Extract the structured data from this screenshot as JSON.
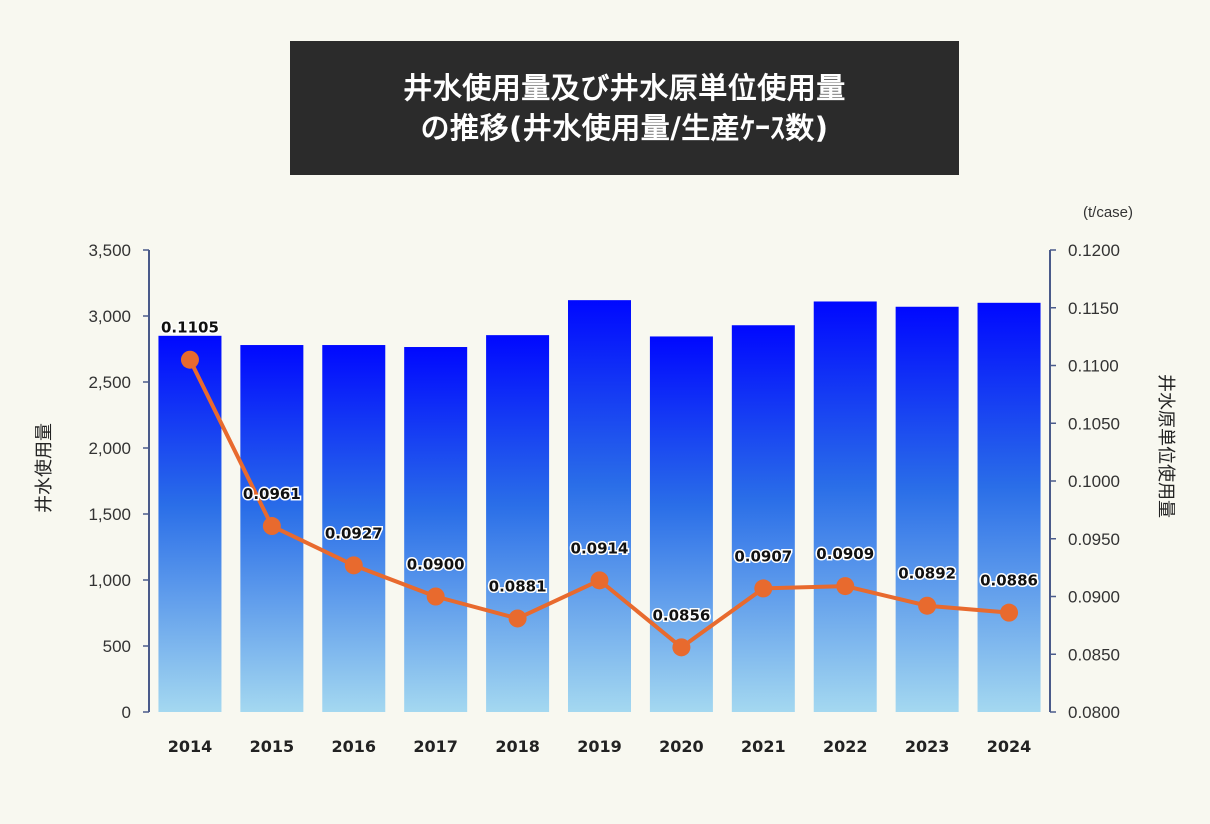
{
  "title": {
    "line1": "井水使用量及び井水原単位使用量",
    "line2": "の推移(井水使用量/生産ｹｰｽ数)"
  },
  "chart_data": {
    "type": "bar",
    "categories": [
      "2014",
      "2015",
      "2016",
      "2017",
      "2018",
      "2019",
      "2020",
      "2021",
      "2022",
      "2023",
      "2024"
    ],
    "series": [
      {
        "type": "bar",
        "axis": "left",
        "values": [
          2850,
          2780,
          2780,
          2765,
          2855,
          3120,
          2845,
          2930,
          3110,
          3070,
          3100
        ]
      },
      {
        "type": "line",
        "axis": "right",
        "values": [
          0.1105,
          0.0961,
          0.0927,
          0.09,
          0.0881,
          0.0914,
          0.0856,
          0.0907,
          0.0909,
          0.0892,
          0.0886
        ],
        "labels": [
          "0.1105",
          "0.0961",
          "0.0927",
          "0.0900",
          "0.0881",
          "0.0914",
          "0.0856",
          "0.0907",
          "0.0909",
          "0.0892",
          "0.0886"
        ]
      }
    ],
    "ylabel": "井水使用量",
    "y2label": "井水原単位使用量",
    "y2unit": "(t/case)",
    "ylim": [
      0,
      3500
    ],
    "yticks": [
      "0",
      "500",
      "1,000",
      "1,500",
      "2,000",
      "2,500",
      "3,000",
      "3,500"
    ],
    "y2lim": [
      0.08,
      0.12
    ],
    "y2ticks": [
      "0.0800",
      "0.0850",
      "0.0900",
      "0.0950",
      "0.1000",
      "0.1050",
      "0.1100",
      "0.1150",
      "0.1200"
    ],
    "colors": {
      "bar_top": "#0008ff",
      "bar_mid": "#2a6ee8",
      "bar_bottom": "#a4d8f0",
      "line": "#e86a2e",
      "axis": "#4a5a8a"
    },
    "grid": false,
    "legend": "none"
  }
}
